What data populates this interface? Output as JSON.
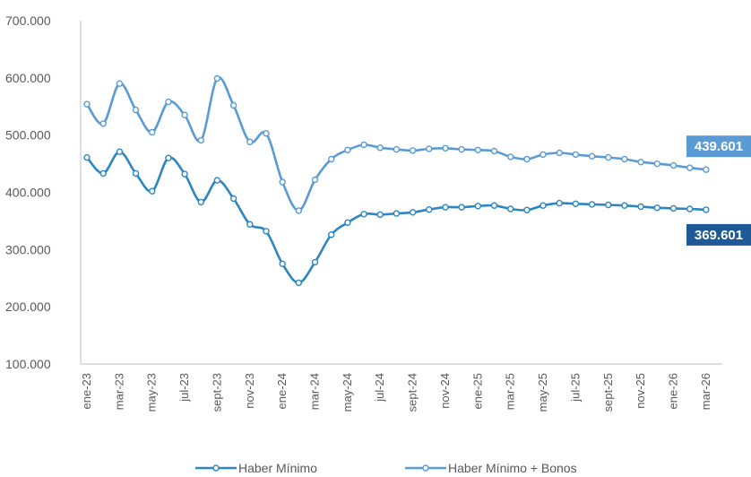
{
  "chart_data": {
    "type": "line",
    "y_ticks": [
      "100.000",
      "200.000",
      "300.000",
      "400.000",
      "500.000",
      "600.000",
      "700.000"
    ],
    "ylim": [
      100000,
      700000
    ],
    "x_tick_labels": [
      "ene-23",
      "mar-23",
      "may-23",
      "jul-23",
      "sept-23",
      "nov-23",
      "ene-24",
      "mar-24",
      "may-24",
      "jul-24",
      "sept-24",
      "nov-24",
      "ene-25",
      "mar-25",
      "may-25",
      "jul-25",
      "sept-25",
      "nov-25",
      "ene-26",
      "mar-26"
    ],
    "x": [
      "ene-23",
      "feb-23",
      "mar-23",
      "abr-23",
      "may-23",
      "jun-23",
      "jul-23",
      "ago-23",
      "sept-23",
      "oct-23",
      "nov-23",
      "dic-23",
      "ene-24",
      "feb-24",
      "mar-24",
      "abr-24",
      "may-24",
      "jun-24",
      "jul-24",
      "ago-24",
      "sept-24",
      "oct-24",
      "nov-24",
      "dic-24",
      "ene-25",
      "feb-25",
      "mar-25",
      "abr-25",
      "may-25",
      "jun-25",
      "jul-25",
      "ago-25",
      "sept-25",
      "oct-25",
      "nov-25",
      "dic-25",
      "ene-26",
      "feb-26",
      "mar-26"
    ],
    "series": [
      {
        "name": "Haber Mínimo",
        "color": "#2E86C1",
        "end_label": "369.601",
        "end_label_bg": "#1F5A96",
        "values": [
          461000,
          433000,
          471000,
          433000,
          402000,
          460000,
          432000,
          383000,
          421000,
          389000,
          344000,
          332000,
          275000,
          242000,
          278000,
          326000,
          347000,
          362000,
          361000,
          363000,
          365000,
          370000,
          374000,
          374000,
          376000,
          377000,
          371000,
          369000,
          377000,
          381000,
          380000,
          379000,
          378000,
          377000,
          375000,
          373000,
          372000,
          371000,
          369601
        ]
      },
      {
        "name": "Haber Mínimo + Bonos",
        "color": "#5B9BD5",
        "end_label": "439.601",
        "end_label_bg": "#5B9BD5",
        "values": [
          554000,
          520000,
          590000,
          544000,
          505000,
          558000,
          535000,
          491000,
          599000,
          552000,
          488000,
          503000,
          418000,
          368000,
          422000,
          458000,
          474000,
          483000,
          478000,
          475000,
          473000,
          476000,
          477000,
          475000,
          474000,
          472000,
          462000,
          458000,
          466000,
          469000,
          466000,
          463000,
          461000,
          458000,
          453000,
          450000,
          447000,
          443000,
          439601
        ]
      }
    ]
  }
}
